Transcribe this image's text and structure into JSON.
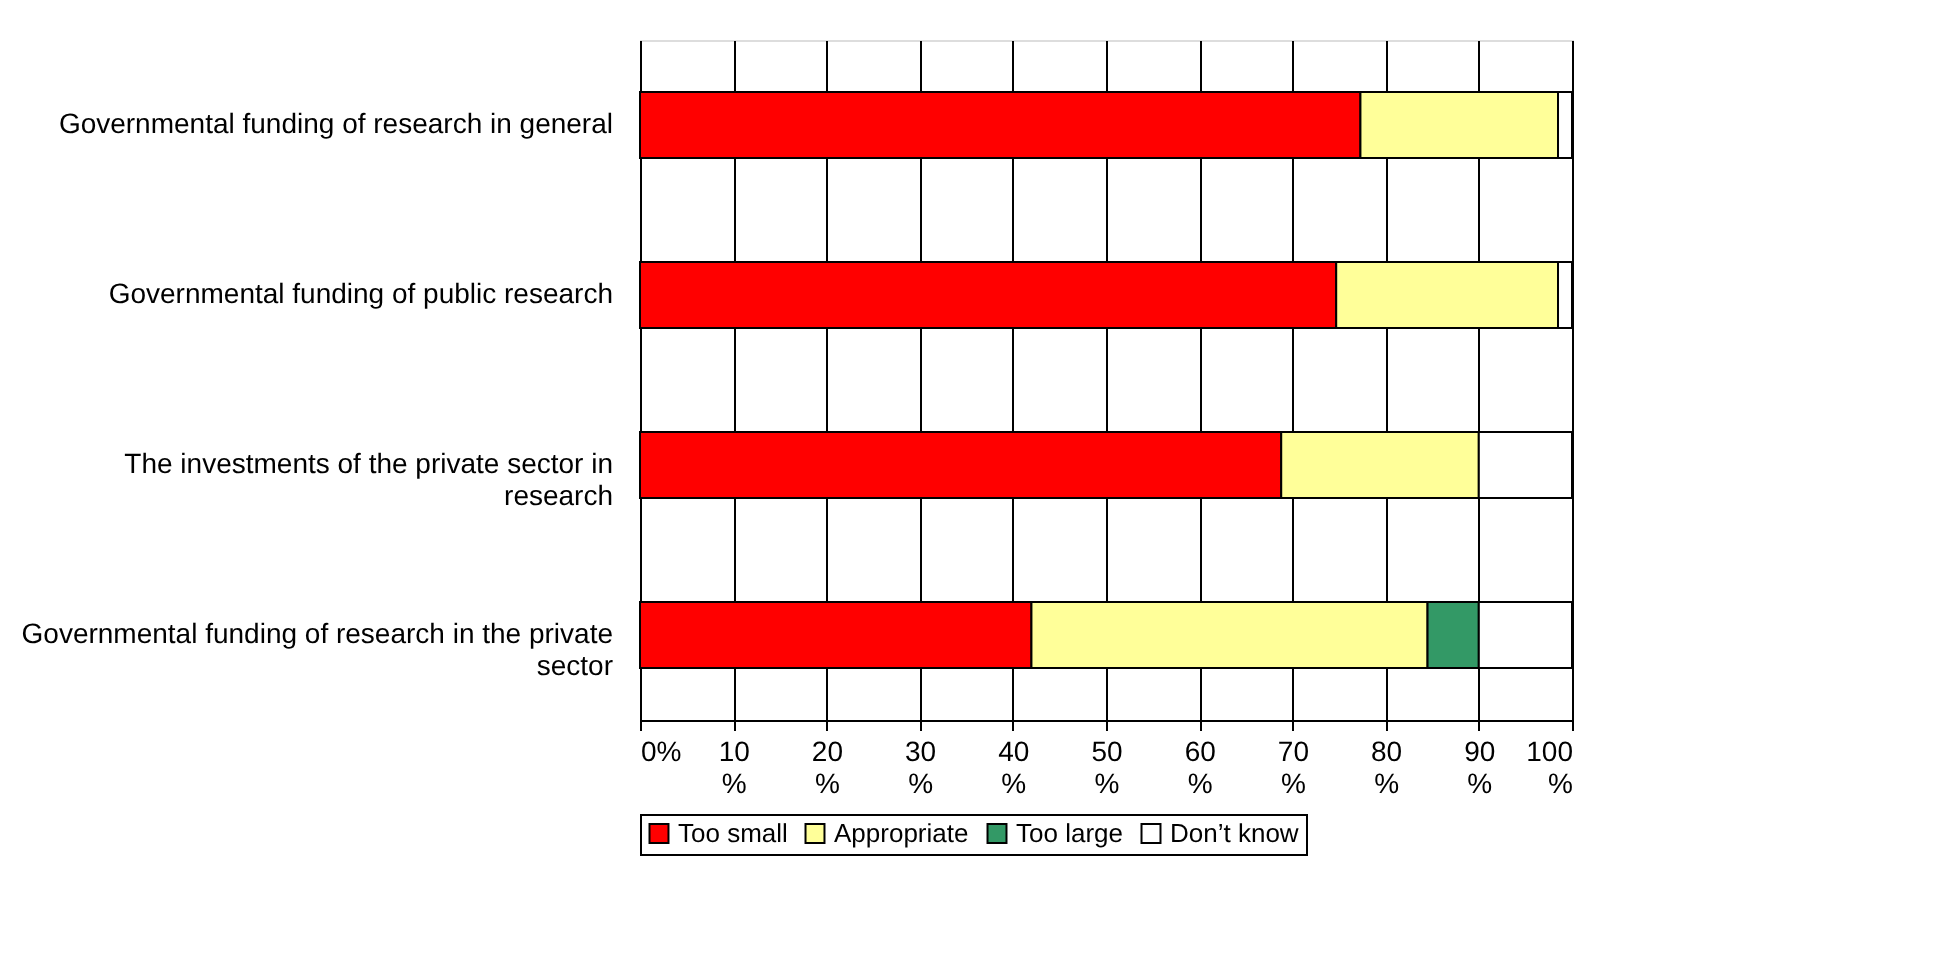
{
  "chart_data": {
    "type": "bar",
    "orientation": "horizontal",
    "stacked": true,
    "categories": [
      "Governmental funding of research in general",
      "Governmental funding of public research",
      "The investments of the private sector in research",
      "Governmental funding of research in the private sector"
    ],
    "series": [
      {
        "name": "Too small",
        "color": "#ff0000",
        "values": [
          77.3,
          74.7,
          68.8,
          42.0
        ]
      },
      {
        "name": "Appropriate",
        "color": "#ffff99",
        "values": [
          21.2,
          23.8,
          21.2,
          42.5
        ]
      },
      {
        "name": "Too large",
        "color": "#339966",
        "values": [
          null,
          null,
          null,
          5.5
        ]
      },
      {
        "name": "Don’t know",
        "color": "#ffffff",
        "values": [
          1.5,
          1.5,
          10.0,
          10.0
        ]
      }
    ],
    "xlim": [
      0,
      100
    ],
    "xticks": [
      {
        "value": 0,
        "label": "0%"
      },
      {
        "value": 10,
        "label": "10%"
      },
      {
        "value": 20,
        "label": "20%"
      },
      {
        "value": 30,
        "label": "30%"
      },
      {
        "value": 40,
        "label": "40%"
      },
      {
        "value": 50,
        "label": "50%"
      },
      {
        "value": 60,
        "label": "60%"
      },
      {
        "value": 70,
        "label": "70%"
      },
      {
        "value": 80,
        "label": "80%"
      },
      {
        "value": 90,
        "label": "90%"
      },
      {
        "value": 100,
        "label": "100%"
      }
    ],
    "grid": "x",
    "legend": "bottom"
  }
}
